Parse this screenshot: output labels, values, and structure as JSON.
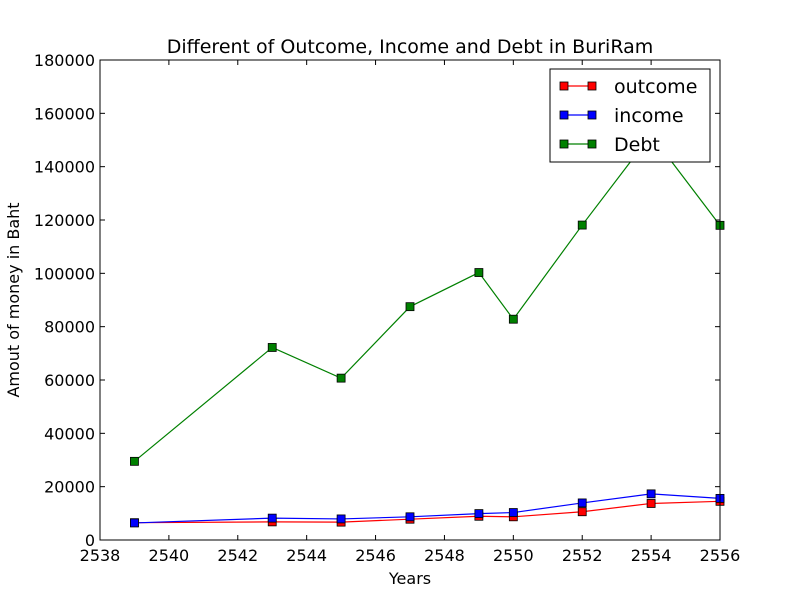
{
  "chart_data": {
    "type": "line",
    "title": "Different of Outcome, Income and Debt in BuriRam",
    "xlabel": "Years",
    "ylabel": "Amout of money in Baht",
    "xlim": [
      2538,
      2556
    ],
    "ylim": [
      0,
      180000
    ],
    "xticks": [
      2538,
      2540,
      2542,
      2544,
      2546,
      2548,
      2550,
      2552,
      2554,
      2556
    ],
    "yticks": [
      0,
      20000,
      40000,
      60000,
      80000,
      100000,
      120000,
      140000,
      160000,
      180000
    ],
    "grid": false,
    "legend_position": "top-right",
    "x": [
      2539,
      2543,
      2545,
      2547,
      2549,
      2550,
      2552,
      2554,
      2556
    ],
    "series": [
      {
        "name": "outcome",
        "color": "#ff0000",
        "values": [
          6500,
          6800,
          6700,
          7800,
          8900,
          8700,
          10600,
          13700,
          14500
        ]
      },
      {
        "name": "income",
        "color": "#0000ff",
        "values": [
          6400,
          8200,
          7900,
          8700,
          9900,
          10300,
          13900,
          17300,
          15600
        ]
      },
      {
        "name": "Debt",
        "color": "#008000",
        "values": [
          29500,
          72200,
          60700,
          87500,
          100300,
          82800,
          118100,
          152000,
          118000
        ]
      }
    ]
  }
}
